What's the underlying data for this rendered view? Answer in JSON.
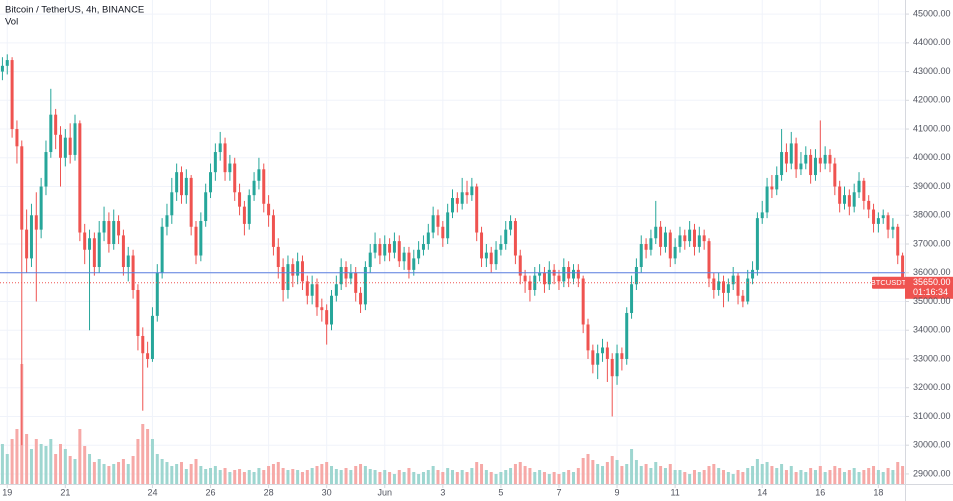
{
  "chart_data": {
    "type": "candlestick",
    "title": "Bitcoin / TetherUS, 4h, BINANCE",
    "volume_label": "Vol",
    "up_color": "#26a69a",
    "down_color": "#ef5350",
    "volume_up_color": "#9ed6d0",
    "volume_down_color": "#f6a9a7",
    "xlim": [
      -0.5,
      186.5
    ],
    "xticks": [
      {
        "value": 1,
        "label": "19"
      },
      {
        "value": 13,
        "label": "21"
      },
      {
        "value": 31,
        "label": "24"
      },
      {
        "value": 43,
        "label": "26"
      },
      {
        "value": 55,
        "label": "28"
      },
      {
        "value": 67,
        "label": "30"
      },
      {
        "value": 79,
        "label": "Jun"
      },
      {
        "value": 91,
        "label": "3"
      },
      {
        "value": 103,
        "label": "5"
      },
      {
        "value": 115,
        "label": "7"
      },
      {
        "value": 127,
        "label": "9"
      },
      {
        "value": 139,
        "label": "11"
      },
      {
        "value": 157,
        "label": "14"
      },
      {
        "value": 169,
        "label": "16"
      },
      {
        "value": 181,
        "label": "18"
      }
    ],
    "ylim": [
      28650,
      45490
    ],
    "yticks": [
      {
        "value": 45000,
        "label": "45000.00"
      },
      {
        "value": 44000,
        "label": "44000.00"
      },
      {
        "value": 43000,
        "label": "43000.00"
      },
      {
        "value": 42000,
        "label": "42000.00"
      },
      {
        "value": 41000,
        "label": "41000.00"
      },
      {
        "value": 40000,
        "label": "40000.00"
      },
      {
        "value": 39000,
        "label": "39000.00"
      },
      {
        "value": 38000,
        "label": "38000.00"
      },
      {
        "value": 37000,
        "label": "37000.00"
      },
      {
        "value": 36000,
        "label": "36000.00"
      },
      {
        "value": 35000,
        "label": "35000.00"
      },
      {
        "value": 34000,
        "label": "34000.00"
      },
      {
        "value": 33000,
        "label": "33000.00"
      },
      {
        "value": 32000,
        "label": "32000.00"
      },
      {
        "value": 31000,
        "label": "31000.00"
      },
      {
        "value": 30000,
        "label": "30000.00"
      },
      {
        "value": 29000,
        "label": "29000.00"
      }
    ],
    "grid": true,
    "reference_line": {
      "value": 36000,
      "color": "#5b7fe0"
    },
    "last_price": {
      "symbol": "BTCUSDT",
      "value": 35650,
      "label": "35650.00",
      "countdown": "01:16:34",
      "color": "#ef5350"
    },
    "volume_lim": [
      0,
      150
    ],
    "open": [
      43000,
      43200,
      43400,
      41000,
      40400,
      37500,
      36500,
      38000,
      37500,
      39000,
      40200,
      41500,
      40800,
      40000,
      40700,
      40100,
      41200,
      37400,
      36800,
      37200,
      36200,
      37400,
      37800,
      37000,
      37800,
      37300,
      36200,
      36600,
      35400,
      33800,
      33200,
      33000,
      34500,
      36000,
      37600,
      38000,
      38800,
      39500,
      38700,
      39300,
      37600,
      36600,
      37800,
      38800,
      39500,
      40200,
      40500,
      39500,
      39800,
      38800,
      38300,
      37700,
      38700,
      39200,
      39600,
      38400,
      38000,
      36900,
      36200,
      35400,
      36300,
      35900,
      36400,
      35700,
      35200,
      35600,
      34800,
      34700,
      34200,
      35200,
      35600,
      36200,
      35800,
      36000,
      35300,
      34900,
      36200,
      36700,
      37000,
      36600,
      37000,
      36700,
      37100,
      36400,
      36700,
      36100,
      36500,
      36800,
      37000,
      37400,
      38000,
      37600,
      37200,
      38100,
      38600,
      38400,
      38800,
      38700,
      39000,
      37400,
      36500,
      36700,
      36300,
      36800,
      37000,
      37500,
      37800,
      36600,
      35900,
      35700,
      35400,
      35900,
      36000,
      35600,
      36100,
      35900,
      35700,
      36200,
      35800,
      36100,
      35800,
      34200,
      33300,
      32800,
      33200,
      33400,
      33000,
      32400,
      33200,
      33000,
      34600,
      35600,
      36200,
      37000,
      36800,
      37200,
      37600,
      36900,
      37400,
      36500,
      36900,
      37300,
      37100,
      37500,
      36900,
      37300,
      37100,
      35800,
      35400,
      35700,
      35300,
      35600,
      35900,
      35200,
      35000,
      35800,
      36100,
      37900,
      38100,
      39000,
      38900,
      39400,
      40200,
      39800,
      40500,
      39600,
      39800,
      40100,
      39400,
      40000,
      39800,
      40100,
      39800,
      39000,
      38400,
      38700,
      38300,
      38800,
      39200,
      38500,
      38200,
      37700,
      37900,
      38000,
      37500,
      37600,
      36600
    ],
    "high": [
      43500,
      43600,
      43500,
      41300,
      40600,
      38200,
      38400,
      38800,
      39300,
      40600,
      42400,
      41700,
      41100,
      41000,
      41200,
      41500,
      41300,
      37700,
      37500,
      37400,
      37800,
      38300,
      38100,
      38200,
      38000,
      37500,
      36900,
      36800,
      35600,
      34100,
      33600,
      34800,
      36300,
      37900,
      38400,
      39300,
      39800,
      39700,
      39600,
      39400,
      37800,
      38100,
      39100,
      39800,
      40500,
      40900,
      40700,
      40100,
      40000,
      39100,
      38500,
      38900,
      39500,
      40000,
      39800,
      38700,
      38200,
      37200,
      36500,
      36600,
      36500,
      36700,
      36600,
      35900,
      35900,
      35800,
      35100,
      34900,
      35400,
      35900,
      36500,
      36400,
      36300,
      36200,
      35500,
      36400,
      37000,
      37400,
      37200,
      37300,
      37200,
      37400,
      37300,
      36900,
      36900,
      36800,
      37100,
      37300,
      37700,
      38300,
      38200,
      37800,
      38400,
      38900,
      38800,
      39300,
      39200,
      39300,
      39100,
      37600,
      37000,
      36900,
      37100,
      37300,
      37800,
      38000,
      37900,
      36800,
      36100,
      35900,
      36200,
      36300,
      36200,
      36400,
      36300,
      36100,
      36500,
      36400,
      36300,
      36300,
      35900,
      34400,
      33500,
      33500,
      33700,
      33600,
      33200,
      33500,
      33400,
      34800,
      35900,
      36500,
      37300,
      37200,
      37500,
      38500,
      37800,
      37600,
      37500,
      37200,
      37600,
      37500,
      37800,
      37700,
      37600,
      37500,
      37200,
      36000,
      36000,
      35900,
      35800,
      36200,
      36000,
      35400,
      36100,
      36400,
      38100,
      38500,
      39300,
      39400,
      39700,
      41000,
      40500,
      40900,
      40700,
      40200,
      40400,
      40300,
      40300,
      41300,
      40400,
      40300,
      40000,
      39200,
      39000,
      38900,
      39100,
      39500,
      39300,
      38700,
      38400,
      38100,
      38200,
      38100,
      37900,
      37700,
      36700
    ],
    "low": [
      42700,
      42900,
      40700,
      39800,
      30000,
      36000,
      36200,
      35000,
      37200,
      38700,
      40000,
      40300,
      39000,
      39700,
      39800,
      39900,
      37100,
      36300,
      34000,
      35900,
      36000,
      37100,
      36700,
      36800,
      37000,
      35900,
      35700,
      35100,
      33300,
      31200,
      32700,
      32900,
      34300,
      35800,
      37300,
      37700,
      38500,
      38400,
      38400,
      37300,
      36300,
      36400,
      37600,
      38600,
      39200,
      39900,
      39200,
      39200,
      38500,
      38000,
      37300,
      37500,
      38500,
      38900,
      38100,
      37600,
      36600,
      35800,
      35000,
      35100,
      35500,
      35600,
      35400,
      34900,
      34900,
      34500,
      34300,
      33500,
      34000,
      35000,
      35400,
      35500,
      35600,
      35000,
      34600,
      34700,
      36000,
      36500,
      36300,
      36400,
      36400,
      36500,
      36200,
      36100,
      35800,
      35900,
      36300,
      36600,
      36800,
      37200,
      37300,
      36900,
      37000,
      37900,
      38100,
      38200,
      38400,
      38500,
      37100,
      36200,
      36200,
      36000,
      36100,
      36600,
      36800,
      37300,
      36300,
      35600,
      35300,
      35000,
      35200,
      35700,
      35300,
      35400,
      35600,
      35400,
      35500,
      35500,
      35600,
      35500,
      33900,
      33000,
      32500,
      32300,
      32900,
      32200,
      31000,
      32100,
      32600,
      32800,
      34400,
      35400,
      36000,
      36500,
      36600,
      37000,
      36600,
      36700,
      36200,
      36300,
      36700,
      36800,
      36900,
      36600,
      36700,
      36800,
      35500,
      35100,
      35200,
      34800,
      35000,
      35400,
      34900,
      34800,
      34900,
      35600,
      35900,
      37700,
      37900,
      38600,
      38700,
      39200,
      39500,
      39600,
      39300,
      39400,
      39600,
      39100,
      39200,
      39500,
      39600,
      39500,
      38700,
      38100,
      38200,
      38000,
      38100,
      38600,
      38200,
      37900,
      37400,
      37400,
      37700,
      37200,
      37200,
      36300,
      35500
    ],
    "close": [
      43200,
      43400,
      41000,
      40400,
      37500,
      36500,
      38000,
      37500,
      39000,
      40200,
      41500,
      40800,
      40000,
      40700,
      40100,
      41200,
      37400,
      36800,
      37200,
      36200,
      37400,
      37800,
      37000,
      37800,
      37300,
      36200,
      36600,
      35400,
      33800,
      33200,
      33000,
      34500,
      36000,
      37600,
      38000,
      38800,
      39500,
      38700,
      39300,
      37600,
      36600,
      37800,
      38800,
      39500,
      40200,
      40500,
      39500,
      39800,
      38800,
      38300,
      37700,
      38700,
      39200,
      39600,
      38400,
      38000,
      36900,
      36200,
      35400,
      36300,
      35900,
      36400,
      35700,
      35200,
      35600,
      34800,
      34700,
      34200,
      35200,
      35600,
      36200,
      35800,
      36000,
      35300,
      34900,
      36200,
      36700,
      37000,
      36600,
      37000,
      36700,
      37100,
      36400,
      36700,
      36100,
      36500,
      36800,
      37000,
      37400,
      38000,
      37600,
      37200,
      38100,
      38600,
      38400,
      38800,
      38700,
      39000,
      37400,
      36500,
      36700,
      36300,
      36800,
      37000,
      37500,
      37800,
      36600,
      35900,
      35700,
      35400,
      35900,
      36000,
      35600,
      36100,
      35900,
      35700,
      36200,
      35800,
      36100,
      35800,
      34200,
      33300,
      32800,
      33200,
      33400,
      33000,
      32400,
      33200,
      33000,
      34600,
      35600,
      36200,
      37000,
      36800,
      37200,
      37600,
      36900,
      37400,
      36500,
      36900,
      37300,
      37100,
      37500,
      36900,
      37300,
      37100,
      35800,
      35400,
      35700,
      35300,
      35600,
      35900,
      35200,
      35000,
      35800,
      36100,
      37900,
      38100,
      39000,
      38900,
      39400,
      40200,
      39800,
      40500,
      39600,
      39800,
      40100,
      39400,
      40000,
      39800,
      40100,
      39800,
      39000,
      38400,
      38700,
      38300,
      38800,
      39200,
      38500,
      38200,
      37700,
      37900,
      38000,
      37500,
      37600,
      36600,
      35650
    ],
    "volume": [
      40,
      30,
      45,
      55,
      120,
      50,
      35,
      45,
      40,
      38,
      45,
      30,
      40,
      35,
      28,
      25,
      55,
      38,
      30,
      22,
      25,
      20,
      18,
      20,
      22,
      25,
      20,
      28,
      45,
      60,
      55,
      45,
      30,
      25,
      22,
      18,
      20,
      22,
      15,
      20,
      25,
      18,
      15,
      16,
      18,
      14,
      16,
      12,
      14,
      15,
      12,
      14,
      12,
      16,
      14,
      18,
      20,
      22,
      16,
      14,
      15,
      14,
      12,
      14,
      16,
      18,
      20,
      22,
      18,
      15,
      14,
      16,
      14,
      18,
      20,
      18,
      15,
      14,
      12,
      14,
      12,
      10,
      14,
      12,
      16,
      12,
      10,
      12,
      14,
      18,
      14,
      12,
      16,
      14,
      12,
      14,
      12,
      16,
      22,
      20,
      14,
      12,
      10,
      12,
      14,
      16,
      20,
      22,
      18,
      16,
      12,
      14,
      12,
      10,
      12,
      10,
      12,
      14,
      12,
      16,
      26,
      30,
      24,
      20,
      18,
      22,
      28,
      24,
      18,
      20,
      35,
      24,
      18,
      20,
      16,
      22,
      18,
      16,
      20,
      14,
      14,
      12,
      10,
      14,
      12,
      14,
      18,
      20,
      16,
      14,
      12,
      10,
      14,
      12,
      16,
      18,
      25,
      20,
      22,
      18,
      16,
      20,
      14,
      18,
      12,
      14,
      12,
      16,
      14,
      18,
      12,
      14,
      18,
      16,
      12,
      14,
      16,
      12,
      14,
      16,
      18,
      14,
      12,
      16,
      14,
      22,
      18
    ]
  }
}
